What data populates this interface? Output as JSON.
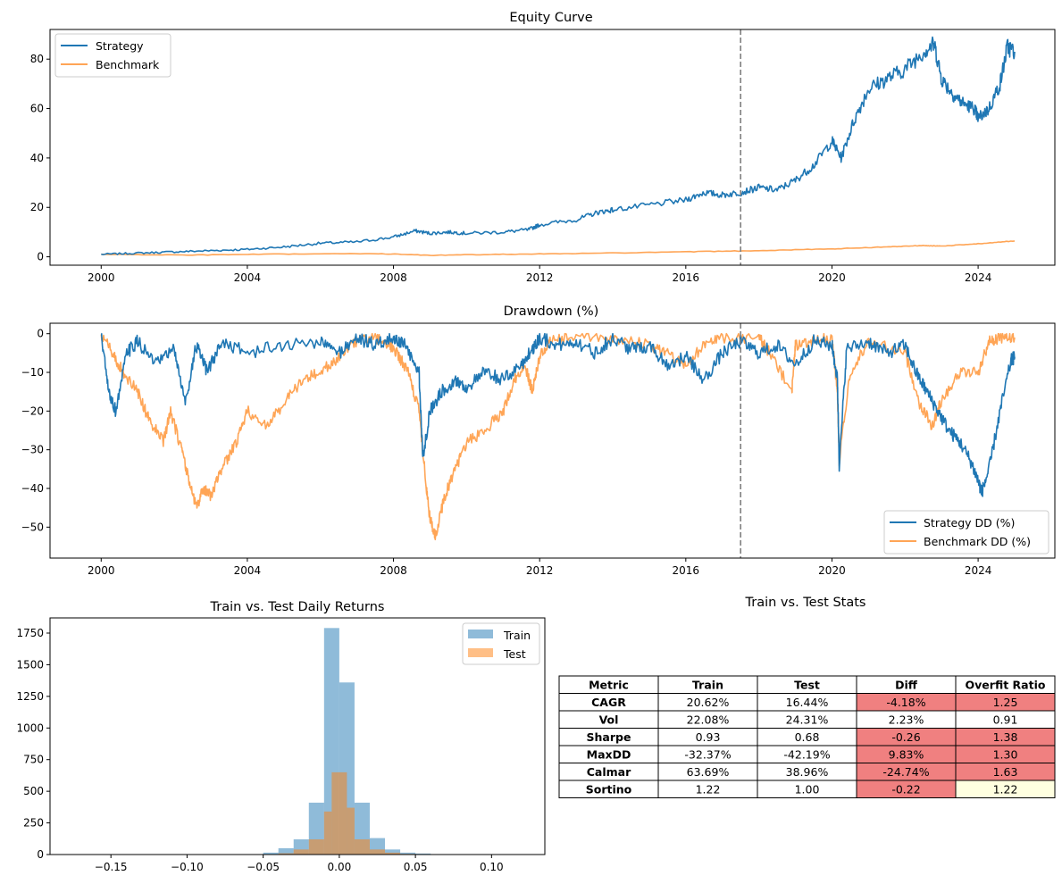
{
  "colors": {
    "strategy": "#1f77b4",
    "benchmark": "#ff7f0e",
    "split_line": "#808080",
    "bad_cell": "#f08080",
    "warn_cell": "#ffffe0"
  },
  "chart_data": [
    {
      "type": "line",
      "title": "Equity Curve",
      "xlabel": "",
      "ylabel": "",
      "xlim": [
        1998.6,
        2026.1
      ],
      "ylim": [
        -3.4,
        92
      ],
      "x_ticks": [
        2000,
        2004,
        2008,
        2012,
        2016,
        2020,
        2024
      ],
      "x_tick_labels": [
        "2000",
        "2004",
        "2008",
        "2012",
        "2016",
        "2020",
        "2024"
      ],
      "y_ticks": [
        0,
        20,
        40,
        60,
        80
      ],
      "y_tick_labels": [
        "0",
        "20",
        "40",
        "60",
        "80"
      ],
      "split_x": 2017.5,
      "legend": "top-left",
      "series": [
        {
          "name": "Strategy",
          "x": [
            2000.0,
            2001.0,
            2002.0,
            2003.0,
            2004.0,
            2005.0,
            2006.0,
            2007.0,
            2008.0,
            2008.6,
            2009.0,
            2009.5,
            2010.0,
            2011.0,
            2011.7,
            2012.0,
            2013.0,
            2013.6,
            2014.0,
            2015.0,
            2016.0,
            2016.5,
            2017.0,
            2017.5,
            2018.0,
            2018.5,
            2019.0,
            2019.5,
            2020.0,
            2020.25,
            2020.6,
            2021.0,
            2021.5,
            2022.0,
            2022.5,
            2022.8,
            2023.0,
            2023.3,
            2023.6,
            2023.9,
            2024.0,
            2024.3,
            2024.6,
            2024.8,
            2025.0
          ],
          "values": [
            1.0,
            1.5,
            2.0,
            2.5,
            3.0,
            4.0,
            5.5,
            6.0,
            8.0,
            10.5,
            9.5,
            10.0,
            9.5,
            10.0,
            11.0,
            13.0,
            15.0,
            18.0,
            19.0,
            21.0,
            23.0,
            26.0,
            25.0,
            26.0,
            28.0,
            27.0,
            31.0,
            37.0,
            47.0,
            40.0,
            55.0,
            68.0,
            72.0,
            76.0,
            83.0,
            86.0,
            72.0,
            66.0,
            62.0,
            60.0,
            56.0,
            60.0,
            70.0,
            85.0,
            83.0
          ]
        },
        {
          "name": "Benchmark",
          "x": [
            2000.0,
            2002.5,
            2005.0,
            2007.5,
            2009.1,
            2011.0,
            2013.0,
            2016.0,
            2018.0,
            2020.0,
            2021.5,
            2022.5,
            2023.0,
            2024.0,
            2025.0
          ],
          "values": [
            1.0,
            0.7,
            1.1,
            1.3,
            0.6,
            1.0,
            1.3,
            2.0,
            2.5,
            3.2,
            4.0,
            4.6,
            4.3,
            5.3,
            6.4
          ]
        }
      ]
    },
    {
      "type": "line",
      "title": "Drawdown (%)",
      "xlabel": "",
      "ylabel": "",
      "xlim": [
        1998.6,
        2026.1
      ],
      "ylim": [
        -58,
        2.7
      ],
      "x_ticks": [
        2000,
        2004,
        2008,
        2012,
        2016,
        2020,
        2024
      ],
      "x_tick_labels": [
        "2000",
        "2004",
        "2008",
        "2012",
        "2016",
        "2020",
        "2024"
      ],
      "y_ticks": [
        0,
        -10,
        -20,
        -30,
        -40,
        -50
      ],
      "y_tick_labels": [
        "0",
        "−10",
        "−20",
        "−30",
        "−40",
        "−50"
      ],
      "split_x": 2017.5,
      "legend": "bottom-right",
      "series": [
        {
          "name": "Strategy DD (%)",
          "x": [
            2000.0,
            2000.2,
            2000.4,
            2000.7,
            2001.0,
            2001.5,
            2002.0,
            2002.3,
            2002.6,
            2002.9,
            2003.3,
            2004.0,
            2005.0,
            2006.0,
            2006.5,
            2007.0,
            2007.5,
            2008.0,
            2008.3,
            2008.7,
            2008.8,
            2009.0,
            2009.3,
            2009.7,
            2010.0,
            2010.5,
            2011.0,
            2011.5,
            2011.8,
            2012.0,
            2012.5,
            2013.0,
            2013.5,
            2014.0,
            2014.5,
            2015.0,
            2015.5,
            2016.0,
            2016.5,
            2017.0,
            2017.5,
            2018.0,
            2018.5,
            2019.0,
            2019.5,
            2020.0,
            2020.15,
            2020.2,
            2020.4,
            2021.0,
            2021.5,
            2022.0,
            2022.3,
            2022.6,
            2022.9,
            2023.2,
            2023.5,
            2023.8,
            2024.0,
            2024.1,
            2024.3,
            2024.6,
            2024.9,
            2025.0
          ],
          "values": [
            0.0,
            -15.0,
            -20.0,
            -5.0,
            -2.0,
            -8.0,
            -4.0,
            -18.0,
            -3.0,
            -10.0,
            -2.0,
            -5.0,
            -3.0,
            -2.0,
            -5.0,
            -1.0,
            -3.0,
            -1.0,
            -3.0,
            -10.0,
            -32.0,
            -20.0,
            -15.0,
            -12.0,
            -14.0,
            -10.0,
            -12.0,
            -8.0,
            -4.0,
            -1.0,
            -3.0,
            -2.0,
            -5.0,
            -1.0,
            -4.0,
            -3.0,
            -8.0,
            -6.0,
            -12.0,
            -5.0,
            -2.0,
            -5.0,
            -3.0,
            -8.0,
            -2.0,
            -3.0,
            -12.0,
            -34.0,
            -4.0,
            -2.0,
            -5.0,
            -3.0,
            -10.0,
            -15.0,
            -20.0,
            -25.0,
            -28.0,
            -33.0,
            -38.0,
            -41.0,
            -35.0,
            -20.0,
            -7.0,
            -6.0
          ]
        },
        {
          "name": "Benchmark DD (%)",
          "x": [
            2000.0,
            2000.3,
            2000.6,
            2001.0,
            2001.3,
            2001.7,
            2001.9,
            2002.2,
            2002.4,
            2002.6,
            2002.8,
            2003.0,
            2003.3,
            2003.7,
            2004.0,
            2004.5,
            2005.0,
            2005.5,
            2006.0,
            2006.5,
            2007.0,
            2007.5,
            2007.9,
            2008.1,
            2008.4,
            2008.7,
            2008.9,
            2009.0,
            2009.15,
            2009.4,
            2009.7,
            2010.0,
            2010.5,
            2011.0,
            2011.3,
            2011.6,
            2011.8,
            2012.0,
            2012.3,
            2013.0,
            2014.0,
            2015.0,
            2015.5,
            2016.0,
            2016.5,
            2017.0,
            2018.0,
            2018.3,
            2018.9,
            2019.0,
            2019.5,
            2020.0,
            2020.15,
            2020.2,
            2020.5,
            2021.0,
            2022.0,
            2022.4,
            2022.75,
            2023.0,
            2023.5,
            2024.0,
            2024.3,
            2024.6,
            2025.0
          ],
          "values": [
            0.0,
            -5.0,
            -10.0,
            -15.0,
            -22.0,
            -28.0,
            -20.0,
            -30.0,
            -38.0,
            -45.0,
            -40.0,
            -42.0,
            -35.0,
            -28.0,
            -20.0,
            -24.0,
            -18.0,
            -12.0,
            -10.0,
            -6.0,
            -2.0,
            -1.0,
            -3.0,
            -5.0,
            -10.0,
            -20.0,
            -40.0,
            -48.0,
            -52.0,
            -42.0,
            -35.0,
            -28.0,
            -25.0,
            -20.0,
            -12.0,
            -8.0,
            -15.0,
            -6.0,
            -2.0,
            -1.0,
            -1.0,
            -3.0,
            -5.0,
            -8.0,
            -3.0,
            -1.0,
            -1.0,
            -5.0,
            -15.0,
            -3.0,
            -2.0,
            -1.0,
            -15.0,
            -33.0,
            -10.0,
            -2.0,
            -5.0,
            -18.0,
            -24.0,
            -17.0,
            -10.0,
            -10.0,
            -2.0,
            -1.0,
            -1.0
          ]
        }
      ]
    },
    {
      "type": "bar",
      "subtype": "histogram",
      "title": "Train vs. Test Daily Returns",
      "xlabel": "",
      "ylabel": "",
      "xlim": [
        -0.19,
        0.135
      ],
      "ylim": [
        0,
        1870
      ],
      "x_ticks": [
        -0.15,
        -0.1,
        -0.05,
        0.0,
        0.05,
        0.1
      ],
      "x_tick_labels": [
        "−0.15",
        "−0.10",
        "−0.05",
        "0.00",
        "0.05",
        "0.10"
      ],
      "y_ticks": [
        0,
        250,
        500,
        750,
        1000,
        1250,
        1500,
        1750
      ],
      "y_tick_labels": [
        "0",
        "250",
        "500",
        "750",
        "1000",
        "1250",
        "1500",
        "1750"
      ],
      "legend": "top-right",
      "series": [
        {
          "name": "Train",
          "bin_edges": [
            -0.05,
            -0.04,
            -0.03,
            -0.02,
            -0.01,
            0.0,
            0.01,
            0.02,
            0.03,
            0.04,
            0.05,
            0.06,
            0.07
          ],
          "values": [
            15,
            50,
            120,
            410,
            1790,
            1360,
            410,
            130,
            40,
            15,
            8,
            3
          ]
        },
        {
          "name": "Test",
          "bin_edges": [
            -0.04,
            -0.03,
            -0.02,
            -0.01,
            -0.005,
            0.005,
            0.01,
            0.02,
            0.03,
            0.04,
            0.05
          ],
          "values": [
            10,
            40,
            120,
            340,
            650,
            370,
            120,
            40,
            15,
            5
          ]
        }
      ]
    },
    {
      "type": "table",
      "title": "Train vs. Test Stats",
      "columns": [
        "Metric",
        "Train",
        "Test",
        "Diff",
        "Overfit Ratio"
      ],
      "rows": [
        {
          "cells": [
            "CAGR",
            "20.62%",
            "16.44%",
            "-4.18%",
            "1.25"
          ],
          "diff_flag": "bad",
          "ratio_flag": "bad"
        },
        {
          "cells": [
            "Vol",
            "22.08%",
            "24.31%",
            "2.23%",
            "0.91"
          ],
          "diff_flag": "ok",
          "ratio_flag": "ok"
        },
        {
          "cells": [
            "Sharpe",
            "0.93",
            "0.68",
            "-0.26",
            "1.38"
          ],
          "diff_flag": "bad",
          "ratio_flag": "bad"
        },
        {
          "cells": [
            "MaxDD",
            "-32.37%",
            "-42.19%",
            "9.83%",
            "1.30"
          ],
          "diff_flag": "bad",
          "ratio_flag": "bad"
        },
        {
          "cells": [
            "Calmar",
            "63.69%",
            "38.96%",
            "-24.74%",
            "1.63"
          ],
          "diff_flag": "bad",
          "ratio_flag": "bad"
        },
        {
          "cells": [
            "Sortino",
            "1.22",
            "1.00",
            "-0.22",
            "1.22"
          ],
          "diff_flag": "bad",
          "ratio_flag": "warn"
        }
      ]
    }
  ]
}
